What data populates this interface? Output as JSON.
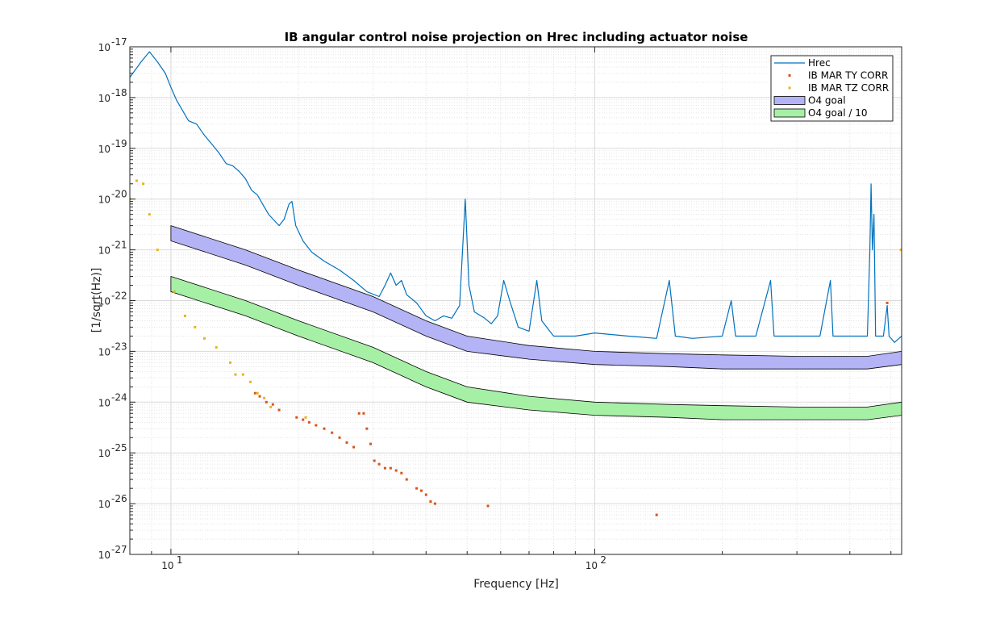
{
  "chart_data": {
    "type": "line",
    "title": "IB angular control noise projection on Hrec including actuator noise",
    "xlabel": "Frequency [Hz]",
    "ylabel": "[1/sqrt(Hz)]",
    "xscale": "log",
    "yscale": "log",
    "xlim": [
      8,
      530
    ],
    "ylim": [
      1e-27,
      1e-17
    ],
    "grid": true,
    "legend_position": "top-right",
    "x_ticks": [
      {
        "base": "10",
        "exp": "1",
        "value": 10
      },
      {
        "base": "10",
        "exp": "2",
        "value": 100
      }
    ],
    "y_ticks": [
      {
        "base": "10",
        "exp": "-17",
        "value": -17
      },
      {
        "base": "10",
        "exp": "-18",
        "value": -18
      },
      {
        "base": "10",
        "exp": "-19",
        "value": -19
      },
      {
        "base": "10",
        "exp": "-20",
        "value": -20
      },
      {
        "base": "10",
        "exp": "-21",
        "value": -21
      },
      {
        "base": "10",
        "exp": "-22",
        "value": -22
      },
      {
        "base": "10",
        "exp": "-23",
        "value": -23
      },
      {
        "base": "10",
        "exp": "-24",
        "value": -24
      },
      {
        "base": "10",
        "exp": "-25",
        "value": -25
      },
      {
        "base": "10",
        "exp": "-26",
        "value": -26
      },
      {
        "base": "10",
        "exp": "-27",
        "value": -27
      }
    ],
    "series": [
      {
        "name": "Hrec",
        "kind": "line",
        "color": "#0072bd",
        "points": [
          [
            8,
            2.5e-18
          ],
          [
            8.5,
            5e-18
          ],
          [
            8.9,
            8e-18
          ],
          [
            9.3,
            5e-18
          ],
          [
            9.7,
            3e-18
          ],
          [
            10,
            1.6e-18
          ],
          [
            10.3,
            9e-19
          ],
          [
            10.6,
            6e-19
          ],
          [
            11,
            3.5e-19
          ],
          [
            11.5,
            3e-19
          ],
          [
            12,
            1.8e-19
          ],
          [
            12.5,
            1.2e-19
          ],
          [
            13,
            8e-20
          ],
          [
            13.5,
            5e-20
          ],
          [
            14,
            4.5e-20
          ],
          [
            14.5,
            3.5e-20
          ],
          [
            15,
            2.5e-20
          ],
          [
            15.5,
            1.5e-20
          ],
          [
            16,
            1.2e-20
          ],
          [
            17,
            5e-21
          ],
          [
            18,
            3e-21
          ],
          [
            18.5,
            4e-21
          ],
          [
            19,
            8e-21
          ],
          [
            19.3,
            9e-21
          ],
          [
            19.7,
            3e-21
          ],
          [
            20.5,
            1.5e-21
          ],
          [
            21.5,
            9e-22
          ],
          [
            23,
            6e-22
          ],
          [
            25,
            4e-22
          ],
          [
            27,
            2.5e-22
          ],
          [
            29,
            1.5e-22
          ],
          [
            31,
            1.2e-22
          ],
          [
            32,
            2e-22
          ],
          [
            33,
            3.5e-22
          ],
          [
            34,
            2e-22
          ],
          [
            35,
            2.5e-22
          ],
          [
            36,
            1.3e-22
          ],
          [
            38,
            9e-23
          ],
          [
            40,
            5e-23
          ],
          [
            42,
            4e-23
          ],
          [
            44,
            5e-23
          ],
          [
            46,
            4.5e-23
          ],
          [
            48,
            8e-23
          ],
          [
            49.5,
            1e-20
          ],
          [
            50.5,
            2e-22
          ],
          [
            52,
            6e-23
          ],
          [
            55,
            4.5e-23
          ],
          [
            57,
            3.5e-23
          ],
          [
            59,
            5e-23
          ],
          [
            61,
            2.5e-22
          ],
          [
            63,
            1e-22
          ],
          [
            66,
            3e-23
          ],
          [
            70,
            2.5e-23
          ],
          [
            73,
            2.5e-22
          ],
          [
            75,
            4e-23
          ],
          [
            80,
            2e-23
          ],
          [
            90,
            2e-23
          ],
          [
            100,
            2.3e-23
          ],
          [
            120,
            2e-23
          ],
          [
            140,
            1.8e-23
          ],
          [
            150,
            2.5e-22
          ],
          [
            155,
            2e-23
          ],
          [
            170,
            1.8e-23
          ],
          [
            200,
            2e-23
          ],
          [
            210,
            1e-22
          ],
          [
            215,
            2e-23
          ],
          [
            240,
            2e-23
          ],
          [
            260,
            2.5e-22
          ],
          [
            265,
            2e-23
          ],
          [
            300,
            2e-23
          ],
          [
            340,
            2e-23
          ],
          [
            360,
            2.5e-22
          ],
          [
            365,
            2e-23
          ],
          [
            400,
            2e-23
          ],
          [
            440,
            2e-23
          ],
          [
            446,
            1e-21
          ],
          [
            449,
            2e-20
          ],
          [
            452,
            1e-21
          ],
          [
            456,
            5e-21
          ],
          [
            460,
            2e-23
          ],
          [
            480,
            2e-23
          ],
          [
            490,
            8e-23
          ],
          [
            495,
            2e-23
          ],
          [
            510,
            1.5e-23
          ],
          [
            530,
            2e-23
          ]
        ]
      },
      {
        "name": "IB MAR TY CORR",
        "kind": "points",
        "color": "#d95319",
        "points": [
          [
            15.8,
            1.5e-24
          ],
          [
            16.2,
            1.3e-24
          ],
          [
            16.8,
            1e-24
          ],
          [
            17.4,
            9e-25
          ],
          [
            18,
            7e-25
          ],
          [
            19.8,
            5e-25
          ],
          [
            20.5,
            4.5e-25
          ],
          [
            21.2,
            4e-25
          ],
          [
            22,
            3.5e-25
          ],
          [
            23,
            3e-25
          ],
          [
            24,
            2.5e-25
          ],
          [
            25,
            2e-25
          ],
          [
            26,
            1.6e-25
          ],
          [
            27,
            1.3e-25
          ],
          [
            27.8,
            6e-25
          ],
          [
            28.5,
            6e-25
          ],
          [
            29,
            3e-25
          ],
          [
            29.6,
            1.5e-25
          ],
          [
            30.2,
            7e-26
          ],
          [
            31,
            6e-26
          ],
          [
            32,
            5e-26
          ],
          [
            33,
            5e-26
          ],
          [
            34,
            4.5e-26
          ],
          [
            35,
            4e-26
          ],
          [
            36,
            3e-26
          ],
          [
            38,
            2e-26
          ],
          [
            39,
            1.8e-26
          ],
          [
            40,
            1.5e-26
          ],
          [
            41,
            1.1e-26
          ],
          [
            42,
            1e-26
          ],
          [
            56,
            9e-27
          ],
          [
            140,
            6e-27
          ],
          [
            490,
            9e-23
          ]
        ]
      },
      {
        "name": "IB MAR TZ CORR",
        "kind": "points",
        "color": "#edb120",
        "points": [
          [
            8,
            1e-20
          ],
          [
            8.3,
            2.3e-20
          ],
          [
            8.6,
            2e-20
          ],
          [
            8.9,
            5e-21
          ],
          [
            9.3,
            1e-21
          ],
          [
            10.2,
            1.5e-22
          ],
          [
            10.8,
            5e-23
          ],
          [
            11.4,
            3e-23
          ],
          [
            12,
            1.8e-23
          ],
          [
            12.8,
            1.2e-23
          ],
          [
            13.8,
            6e-24
          ],
          [
            14.2,
            3.5e-24
          ],
          [
            14.8,
            3.5e-24
          ],
          [
            15.4,
            2.5e-24
          ],
          [
            16,
            1.5e-24
          ],
          [
            16.6,
            1.2e-24
          ],
          [
            17.2,
            8e-25
          ],
          [
            20.8,
            5e-25
          ],
          [
            528,
            1e-21
          ]
        ]
      },
      {
        "name": "O4 goal",
        "kind": "band",
        "color": "#b3b3f5",
        "upper": [
          [
            10,
            3e-21
          ],
          [
            15,
            1e-21
          ],
          [
            20,
            4e-22
          ],
          [
            30,
            1.2e-22
          ],
          [
            40,
            4e-23
          ],
          [
            50,
            2e-23
          ],
          [
            70,
            1.3e-23
          ],
          [
            100,
            1e-23
          ],
          [
            150,
            9e-24
          ],
          [
            200,
            8.5e-24
          ],
          [
            300,
            8e-24
          ],
          [
            440,
            8e-24
          ],
          [
            530,
            1e-23
          ]
        ],
        "lower": [
          [
            10,
            1.5e-21
          ],
          [
            15,
            5e-22
          ],
          [
            20,
            2e-22
          ],
          [
            30,
            6e-23
          ],
          [
            40,
            2e-23
          ],
          [
            50,
            1e-23
          ],
          [
            70,
            7e-24
          ],
          [
            100,
            5.5e-24
          ],
          [
            150,
            5e-24
          ],
          [
            200,
            4.5e-24
          ],
          [
            300,
            4.5e-24
          ],
          [
            440,
            4.5e-24
          ],
          [
            530,
            5.5e-24
          ]
        ]
      },
      {
        "name": "O4 goal / 10",
        "kind": "band",
        "color": "#a6f0a6",
        "upper": [
          [
            10,
            3e-22
          ],
          [
            15,
            1e-22
          ],
          [
            20,
            4e-23
          ],
          [
            30,
            1.2e-23
          ],
          [
            40,
            4e-24
          ],
          [
            50,
            2e-24
          ],
          [
            70,
            1.3e-24
          ],
          [
            100,
            1e-24
          ],
          [
            150,
            9e-25
          ],
          [
            200,
            8.5e-25
          ],
          [
            300,
            8e-25
          ],
          [
            440,
            8e-25
          ],
          [
            530,
            1e-24
          ]
        ],
        "lower": [
          [
            10,
            1.5e-22
          ],
          [
            15,
            5e-23
          ],
          [
            20,
            2e-23
          ],
          [
            30,
            6e-24
          ],
          [
            40,
            2e-24
          ],
          [
            50,
            1e-24
          ],
          [
            70,
            7e-25
          ],
          [
            100,
            5.5e-25
          ],
          [
            150,
            5e-25
          ],
          [
            200,
            4.5e-25
          ],
          [
            300,
            4.5e-25
          ],
          [
            440,
            4.5e-25
          ],
          [
            530,
            5.5e-25
          ]
        ]
      }
    ]
  }
}
